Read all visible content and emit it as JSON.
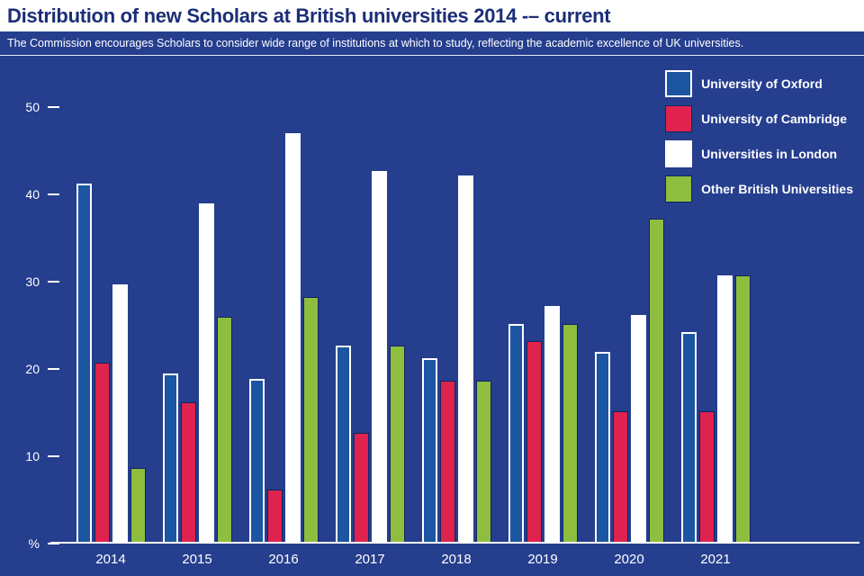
{
  "header": {
    "title": "Distribution of new Scholars at British universities 2014 -– current",
    "subtitle": "The Commission encourages Scholars to consider wide range of institutions at which to study, reflecting the academic excellence of UK universities."
  },
  "colors": {
    "background": "#253e8e",
    "header_background": "#ffffff",
    "title_text": "#1b2e77",
    "axis_text": "#ffffff"
  },
  "chart_data": {
    "type": "bar",
    "title": "Distribution of new Scholars at British universities 2014 -– current",
    "categories": [
      "2014",
      "2015",
      "2016",
      "2017",
      "2018",
      "2019",
      "2020",
      "2021"
    ],
    "series": [
      {
        "key": "oxford",
        "name": "University of Oxford",
        "color": "#1c55a2",
        "values": [
          41,
          19.3,
          18.7,
          22.5,
          21,
          25,
          21.8,
          24
        ]
      },
      {
        "key": "cambridge",
        "name": "University of Cambridge",
        "color": "#e0234e",
        "values": [
          20.5,
          16,
          6,
          12.5,
          18.5,
          23,
          15,
          15
        ]
      },
      {
        "key": "london",
        "name": "Universities in London",
        "color": "#ffffff",
        "values": [
          29.5,
          38.8,
          46.8,
          42.5,
          42,
          27,
          26,
          30.5
        ]
      },
      {
        "key": "other",
        "name": "Other British Universities",
        "color": "#8fbe3f",
        "values": [
          8.5,
          25.8,
          28,
          22.5,
          18.5,
          25,
          37,
          30.5
        ]
      }
    ],
    "xlabel": "",
    "ylabel": "%",
    "ylim": [
      0,
      53.3
    ],
    "grid": false,
    "legend_position": "top-right",
    "y_ticks": [
      {
        "label": "50",
        "value": 50
      },
      {
        "label": "40",
        "value": 40
      },
      {
        "label": "30",
        "value": 30
      },
      {
        "label": "20",
        "value": 20
      },
      {
        "label": "10",
        "value": 10
      },
      {
        "label": "%",
        "value": 0
      }
    ]
  }
}
